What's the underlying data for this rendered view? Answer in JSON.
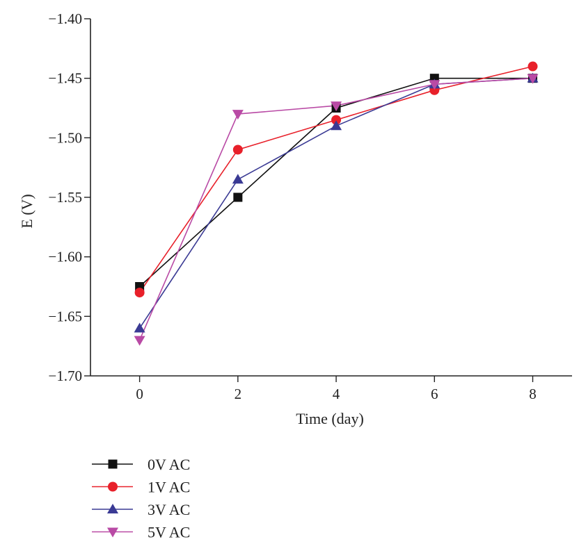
{
  "chart_data": {
    "type": "line",
    "title": "",
    "xlabel": "Time (day)",
    "ylabel": "E (V)",
    "x": [
      0,
      2,
      4,
      6,
      8
    ],
    "xlim": [
      -1,
      8.8
    ],
    "ylim": [
      -1.7,
      -1.4
    ],
    "xticks": [
      0,
      2,
      4,
      6,
      8
    ],
    "xtick_labels": [
      "0",
      "2",
      "4",
      "6",
      "8"
    ],
    "yticks": [
      -1.4,
      -1.45,
      -1.5,
      -1.55,
      -1.6,
      -1.65,
      -1.7
    ],
    "ytick_labels": [
      "−1.40",
      "−1.45",
      "−1.50",
      "−1.55",
      "−1.60",
      "−1.65",
      "−1.70"
    ],
    "grid": false,
    "legend_position": "bottom-left",
    "series": [
      {
        "name": "0V AC",
        "color": "#111111",
        "marker": "square",
        "values": [
          -1.625,
          -1.55,
          -1.475,
          -1.45,
          -1.45
        ]
      },
      {
        "name": "1V AC",
        "color": "#e8202a",
        "marker": "circle",
        "values": [
          -1.63,
          -1.51,
          -1.485,
          -1.46,
          -1.44
        ]
      },
      {
        "name": "3V AC",
        "color": "#3a3a94",
        "marker": "triangle-up",
        "values": [
          -1.66,
          -1.535,
          -1.49,
          -1.455,
          -1.45
        ]
      },
      {
        "name": "5V AC",
        "color": "#b94aa5",
        "marker": "triangle-down",
        "values": [
          -1.67,
          -1.48,
          -1.473,
          -1.455,
          -1.45
        ]
      }
    ]
  }
}
